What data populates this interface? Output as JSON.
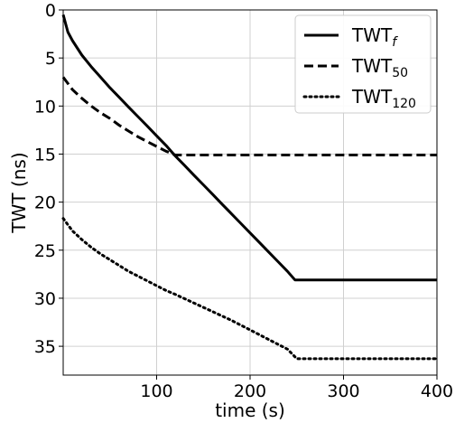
{
  "chart_data": {
    "type": "line",
    "xlabel": "time (s)",
    "ylabel": "TWT (ns)",
    "xlim": [
      0,
      400
    ],
    "ylim": [
      38,
      0
    ],
    "y_inverted": true,
    "grid": true,
    "legend_position": "top-right",
    "x_ticks": [
      100,
      200,
      300,
      400
    ],
    "y_ticks": [
      0,
      5,
      10,
      15,
      20,
      25,
      30,
      35
    ],
    "series": [
      {
        "label_base": "TWT",
        "label_sub": "f",
        "line_style": "solid",
        "color": "#000000",
        "x": [
          0,
          5,
          10,
          20,
          30,
          40,
          50,
          60,
          70,
          80,
          90,
          100,
          110,
          120,
          130,
          140,
          150,
          160,
          170,
          180,
          190,
          200,
          210,
          220,
          230,
          240,
          248,
          260,
          300,
          350,
          400
        ],
        "y": [
          0.5,
          2.3,
          3.2,
          4.7,
          5.9,
          7.0,
          8.1,
          9.1,
          10.1,
          11.1,
          12.1,
          13.1,
          14.1,
          15.2,
          16.2,
          17.2,
          18.2,
          19.2,
          20.2,
          21.2,
          22.2,
          23.2,
          24.2,
          25.2,
          26.2,
          27.2,
          28.1,
          28.1,
          28.1,
          28.1,
          28.1
        ]
      },
      {
        "label_base": "TWT",
        "label_sub": "50",
        "line_style": "dashed",
        "color": "#000000",
        "x": [
          0,
          10,
          20,
          30,
          40,
          50,
          60,
          70,
          80,
          90,
          100,
          110,
          120,
          150,
          200,
          250,
          300,
          350,
          400
        ],
        "y": [
          7.0,
          8.3,
          9.2,
          10.0,
          10.7,
          11.3,
          12.0,
          12.6,
          13.2,
          13.7,
          14.2,
          14.7,
          15.1,
          15.1,
          15.1,
          15.1,
          15.1,
          15.1,
          15.1
        ]
      },
      {
        "label_base": "TWT",
        "label_sub": "120",
        "line_style": "dotted",
        "color": "#000000",
        "x": [
          0,
          10,
          20,
          30,
          40,
          50,
          60,
          70,
          80,
          90,
          100,
          110,
          120,
          140,
          160,
          180,
          200,
          220,
          240,
          250,
          300,
          350,
          400
        ],
        "y": [
          21.7,
          23.0,
          23.9,
          24.7,
          25.4,
          26.0,
          26.6,
          27.2,
          27.7,
          28.2,
          28.7,
          29.2,
          29.6,
          30.5,
          31.4,
          32.3,
          33.3,
          34.3,
          35.3,
          36.3,
          36.3,
          36.3,
          36.3
        ]
      }
    ]
  }
}
